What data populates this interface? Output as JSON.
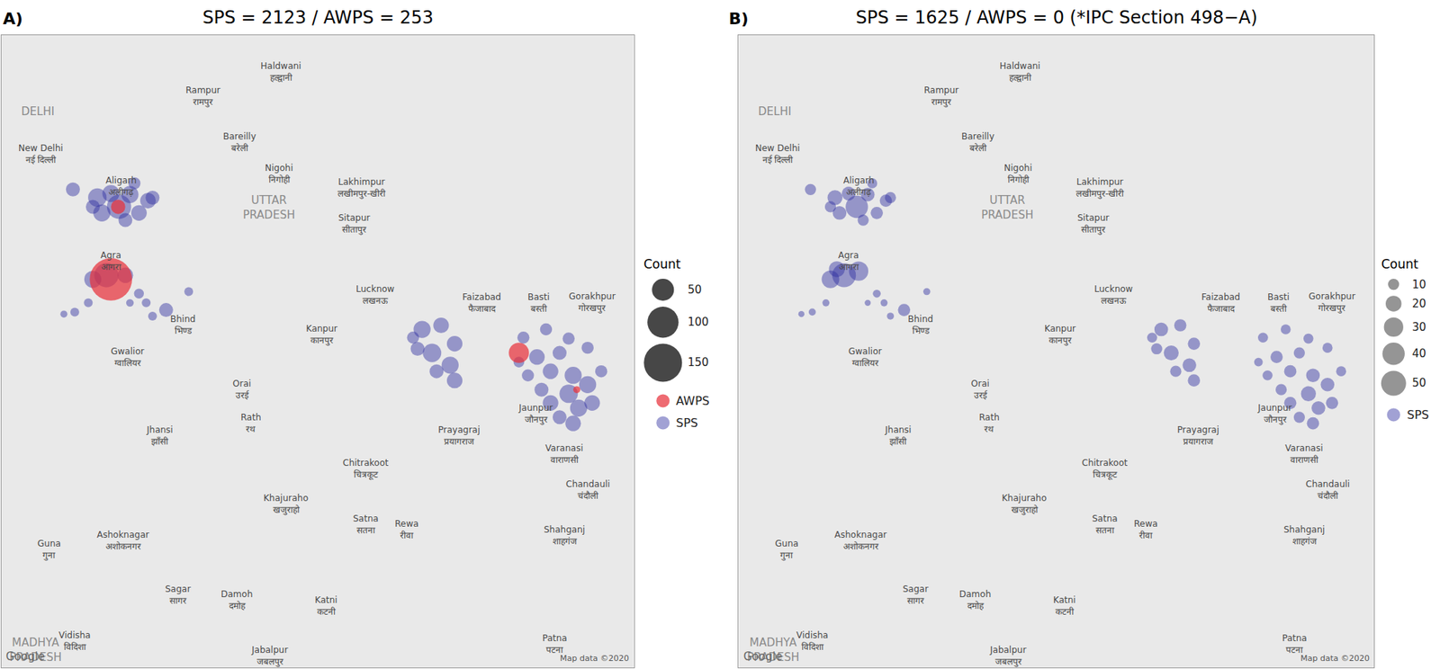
{
  "chart_data": [
    {
      "type": "bubble_map",
      "label": "A)",
      "title": "SPS = 2123 / AWPS = 253",
      "xlim": [
        76.78,
        83.77
      ],
      "ylim": [
        23.38,
        29.57
      ],
      "xticks": [],
      "yticks": [],
      "tick_labels": false,
      "grid": false,
      "legend_title": "Count",
      "size_legend": [
        50,
        100,
        150
      ],
      "series": [
        {
          "name": "AWPS",
          "color": "#e8323c",
          "lon": [
            77.99,
            78.07,
            82.5,
            83.14
          ],
          "lat": [
            27.18,
            27.89,
            26.46,
            26.1
          ],
          "count": [
            185,
            21,
            42,
            5
          ]
        },
        {
          "name": "SPS",
          "color": "#2f2fa0",
          "lon": [
            77.84,
            77.99,
            78.2,
            78.4,
            77.89,
            78.08,
            78.3,
            78.15,
            77.79,
            78.25,
            78.45,
            77.57,
            77.94,
            77.79,
            78.15,
            77.59,
            77.47,
            77.74,
            78.3,
            78.38,
            78.6,
            78.45,
            78.85,
            78.2,
            81.43,
            81.64,
            81.79,
            81.54,
            81.38,
            81.74,
            81.59,
            81.79,
            81.33,
            82.55,
            82.8,
            83.05,
            83.26,
            82.7,
            82.95,
            82.85,
            83.1,
            83.26,
            83.05,
            82.85,
            83.16,
            82.95,
            83.1,
            83.31,
            82.75,
            82.6,
            83.41,
            82.5
          ],
          "lat": [
            27.98,
            28.02,
            28.01,
            27.95,
            27.83,
            27.89,
            27.83,
            27.76,
            27.89,
            28.12,
            27.98,
            28.06,
            27.22,
            27.18,
            27.22,
            26.86,
            26.84,
            26.95,
            27.04,
            26.95,
            26.88,
            26.82,
            27.06,
            26.95,
            26.69,
            26.73,
            26.55,
            26.46,
            26.5,
            26.34,
            26.28,
            26.19,
            26.61,
            26.61,
            26.69,
            26.6,
            26.51,
            26.42,
            26.46,
            26.28,
            26.24,
            26.15,
            26.06,
            25.97,
            25.92,
            25.83,
            25.77,
            25.97,
            26.1,
            26.24,
            26.28,
            26.37
          ],
          "count": [
            35,
            30,
            30,
            25,
            30,
            60,
            25,
            20,
            20,
            15,
            20,
            20,
            60,
            30,
            25,
            8,
            5,
            8,
            10,
            8,
            20,
            8,
            8,
            6,
            30,
            25,
            25,
            35,
            20,
            30,
            20,
            25,
            15,
            15,
            15,
            15,
            15,
            25,
            20,
            25,
            30,
            30,
            35,
            25,
            30,
            20,
            25,
            25,
            20,
            15,
            15,
            12
          ]
        }
      ]
    },
    {
      "type": "bubble_map",
      "label": "B)",
      "title": "SPS = 1625 / AWPS = 0 (*IPC Section 498−A)",
      "xlim": [
        76.78,
        83.77
      ],
      "ylim": [
        23.38,
        29.57
      ],
      "xticks": [],
      "yticks": [],
      "tick_labels": false,
      "grid": false,
      "legend_title": "Count",
      "size_legend": [
        10,
        20,
        30,
        40,
        50
      ],
      "series": [
        {
          "name": "SPS",
          "color": "#2f2fa0",
          "lon": [
            77.84,
            77.99,
            78.2,
            78.4,
            77.89,
            78.08,
            78.3,
            78.15,
            77.79,
            78.25,
            78.45,
            77.57,
            77.94,
            77.79,
            78.1,
            77.86,
            77.59,
            77.47,
            77.74,
            78.3,
            78.38,
            78.6,
            78.45,
            78.85,
            78.2,
            81.43,
            81.64,
            81.79,
            81.54,
            81.38,
            81.74,
            81.59,
            81.79,
            81.33,
            82.55,
            82.8,
            83.05,
            83.26,
            82.7,
            82.95,
            82.85,
            83.1,
            83.26,
            83.05,
            82.85,
            83.16,
            82.95,
            83.1,
            83.31,
            82.75,
            82.6,
            83.41,
            82.5
          ],
          "lat": [
            27.98,
            28.02,
            28.01,
            27.95,
            27.83,
            27.89,
            27.83,
            27.76,
            27.89,
            28.12,
            27.98,
            28.06,
            27.22,
            27.18,
            27.26,
            27.28,
            26.86,
            26.84,
            26.95,
            27.04,
            26.95,
            26.88,
            26.82,
            27.06,
            26.95,
            26.69,
            26.73,
            26.55,
            26.46,
            26.5,
            26.34,
            26.28,
            26.19,
            26.61,
            26.61,
            26.69,
            26.6,
            26.51,
            26.42,
            26.46,
            26.28,
            26.24,
            26.15,
            26.06,
            25.97,
            25.92,
            25.83,
            25.77,
            25.97,
            26.1,
            26.24,
            26.28,
            26.37
          ],
          "count": [
            18,
            15,
            15,
            12,
            15,
            40,
            12,
            10,
            10,
            8,
            10,
            10,
            45,
            25,
            30,
            20,
            4,
            3,
            4,
            5,
            4,
            12,
            4,
            4,
            3,
            15,
            12,
            12,
            18,
            10,
            15,
            10,
            12,
            8,
            8,
            8,
            8,
            8,
            12,
            10,
            12,
            15,
            15,
            18,
            12,
            15,
            10,
            12,
            12,
            10,
            8,
            8,
            6
          ]
        }
      ]
    }
  ],
  "map_labels": [
    {
      "lines": [
        "DELHI"
      ],
      "lon": 77.18,
      "lat": 28.82
    },
    {
      "lines": [
        "New Delhi",
        "नई दिल्ली"
      ],
      "lon": 77.21,
      "lat": 28.41
    },
    {
      "lines": [
        "Haldwani",
        "हल्द्वानी"
      ],
      "lon": 79.87,
      "lat": 29.21
    },
    {
      "lines": [
        "Rampur",
        "रामपुर"
      ],
      "lon": 79.01,
      "lat": 28.97
    },
    {
      "lines": [
        "Bareilly",
        "बरेली"
      ],
      "lon": 79.41,
      "lat": 28.52
    },
    {
      "lines": [
        "Nigohi",
        "निगोही"
      ],
      "lon": 79.85,
      "lat": 28.21
    },
    {
      "lines": [
        "Lakhimpur",
        "लखीमपुर-खीरी"
      ],
      "lon": 80.76,
      "lat": 28.07
    },
    {
      "lines": [
        "Sitapur",
        "सीतापुर"
      ],
      "lon": 80.68,
      "lat": 27.72
    },
    {
      "lines": [
        "UTTAR",
        "PRADESH"
      ],
      "lon": 79.74,
      "lat": 27.88
    },
    {
      "lines": [
        "Aligarh",
        "अलीगढ़"
      ],
      "lon": 78.1,
      "lat": 28.09
    },
    {
      "lines": [
        "Agra",
        "आगरा"
      ],
      "lon": 77.99,
      "lat": 27.36
    },
    {
      "lines": [
        "Bhind",
        "भिण्ड"
      ],
      "lon": 78.78,
      "lat": 26.73
    },
    {
      "lines": [
        "Gwalior",
        "ग्वालियर"
      ],
      "lon": 78.17,
      "lat": 26.42
    },
    {
      "lines": [
        "Lucknow",
        "लखनऊ"
      ],
      "lon": 80.91,
      "lat": 27.03
    },
    {
      "lines": [
        "Kanpur",
        "कानपुर"
      ],
      "lon": 80.32,
      "lat": 26.64
    },
    {
      "lines": [
        "Faizabad",
        "फैजाबाद"
      ],
      "lon": 82.09,
      "lat": 26.95
    },
    {
      "lines": [
        "Basti",
        "बस्ती"
      ],
      "lon": 82.72,
      "lat": 26.95
    },
    {
      "lines": [
        "Gorakhpur",
        "गोरखपुर"
      ],
      "lon": 83.31,
      "lat": 26.95
    },
    {
      "lines": [
        "Orai",
        "उरई"
      ],
      "lon": 79.44,
      "lat": 26.1
    },
    {
      "lines": [
        "Rath",
        "रथ"
      ],
      "lon": 79.54,
      "lat": 25.77
    },
    {
      "lines": [
        "Jhansi",
        "झाँसी"
      ],
      "lon": 78.53,
      "lat": 25.65
    },
    {
      "lines": [
        "Prayagraj",
        "प्रयागराज"
      ],
      "lon": 81.84,
      "lat": 25.65
    },
    {
      "lines": [
        "Jaunpur",
        "जौनपुर"
      ],
      "lon": 82.68,
      "lat": 25.86
    },
    {
      "lines": [
        "Varanasi",
        "वाराणसी"
      ],
      "lon": 83.0,
      "lat": 25.47
    },
    {
      "lines": [
        "Chandauli",
        "चंदौली"
      ],
      "lon": 83.26,
      "lat": 25.12
    },
    {
      "lines": [
        "Chitrakoot",
        "चित्रकूट"
      ],
      "lon": 80.81,
      "lat": 25.32
    },
    {
      "lines": [
        "Khajuraho",
        "खजुराहो"
      ],
      "lon": 79.92,
      "lat": 24.98
    },
    {
      "lines": [
        "Satna",
        "सतना"
      ],
      "lon": 80.81,
      "lat": 24.78
    },
    {
      "lines": [
        "Rewa",
        "रीवा"
      ],
      "lon": 81.26,
      "lat": 24.73
    },
    {
      "lines": [
        "Shahganj",
        "शाहगंज"
      ],
      "lon": 83.0,
      "lat": 24.67
    },
    {
      "lines": [
        "Guna",
        "गुना"
      ],
      "lon": 77.31,
      "lat": 24.53
    },
    {
      "lines": [
        "Ashoknagar",
        "अशोकनगर"
      ],
      "lon": 78.12,
      "lat": 24.62
    },
    {
      "lines": [
        "Sagar",
        "सागर"
      ],
      "lon": 78.73,
      "lat": 24.09
    },
    {
      "lines": [
        "Damoh",
        "दमोह"
      ],
      "lon": 79.38,
      "lat": 24.04
    },
    {
      "lines": [
        "Katni",
        "कटनी"
      ],
      "lon": 80.37,
      "lat": 23.98
    },
    {
      "lines": [
        "Vidisha",
        "विदिशा"
      ],
      "lon": 77.59,
      "lat": 23.64
    },
    {
      "lines": [
        "Jabalpur",
        "जबलपुर"
      ],
      "lon": 79.74,
      "lat": 23.49
    },
    {
      "lines": [
        "Patna",
        "पटना"
      ],
      "lon": 82.9,
      "lat": 23.61
    },
    {
      "lines": [
        "MADHYA",
        "PRADESH"
      ],
      "lon": 77.16,
      "lat": 23.55
    }
  ],
  "attribution": [
    "Google",
    "Map data ©2020"
  ]
}
